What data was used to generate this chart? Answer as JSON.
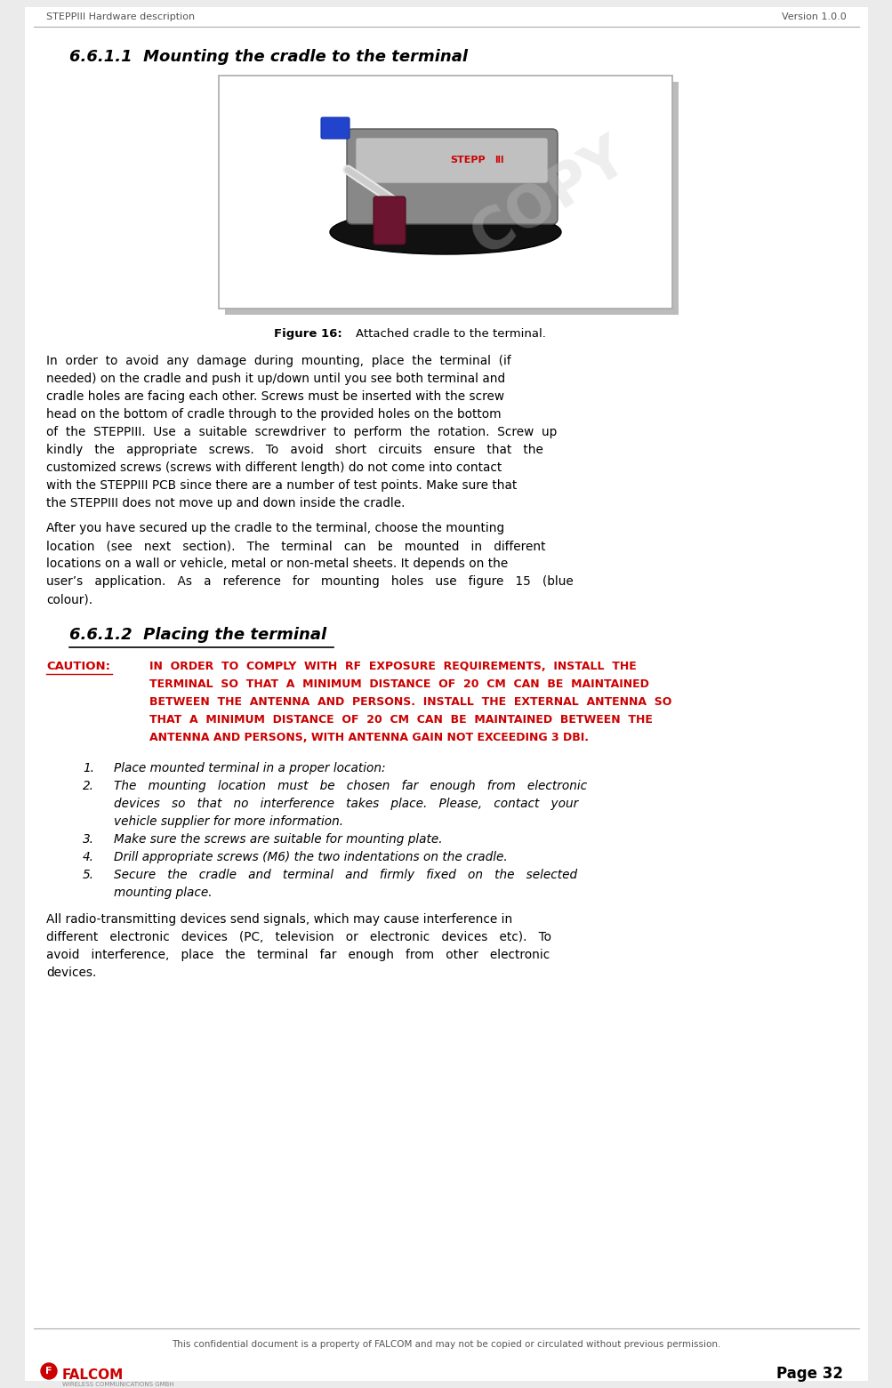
{
  "header_left": "STEPPIII Hardware description",
  "header_right": "Version 1.0.0",
  "section_title": "6.6.1.1  Mounting the cradle to the terminal",
  "figure_caption_bold": "Figure 16:",
  "figure_caption_text": "Attached cradle to the terminal.",
  "body_text_1_lines": [
    "In  order  to  avoid  any  damage  during  mounting,  place  the  terminal  (if",
    "needed) on the cradle and push it up/down until you see both terminal and",
    "cradle holes are facing each other. Screws must be inserted with the screw",
    "head on the bottom of cradle through to the provided holes on the bottom",
    "of  the  STEPPIII.  Use  a  suitable  screwdriver  to  perform  the  rotation.  Screw  up",
    "kindly   the   appropriate   screws.   To   avoid   short   circuits   ensure   that   the",
    "customized screws (screws with different length) do not come into contact",
    "with the STEPPIII PCB since there are a number of test points. Make sure that",
    "the STEPPIII does not move up and down inside the cradle."
  ],
  "body_text_2_lines": [
    "After you have secured up the cradle to the terminal, choose the mounting",
    "location   (see   next   section).   The   terminal   can   be   mounted   in   different",
    "locations on a wall or vehicle, metal or non-metal sheets. It depends on the",
    "user’s   application.   As   a   reference   for   mounting   holes   use   figure   15   (blue",
    "colour)."
  ],
  "section_title_2": "6.6.1.2  Placing the terminal",
  "caution_label": "CAUTION:",
  "caution_text_lines": [
    "IN  ORDER  TO  COMPLY  WITH  RF  EXPOSURE  REQUIREMENTS,  INSTALL  THE",
    "TERMINAL  SO  THAT  A  MINIMUM  DISTANCE  OF  20  CM  CAN  BE  MAINTAINED",
    "BETWEEN  THE  ANTENNA  AND  PERSONS.  INSTALL  THE  EXTERNAL  ANTENNA  SO",
    "THAT  A  MINIMUM  DISTANCE  OF  20  CM  CAN  BE  MAINTAINED  BETWEEN  THE",
    "ANTENNA AND PERSONS, WITH ANTENNA GAIN NOT EXCEEDING 3 DBI."
  ],
  "list_items": [
    [
      [
        "1.",
        "Place mounted terminal in a proper location:"
      ]
    ],
    [
      [
        "2.",
        "The   mounting   location   must   be   chosen   far   enough   from   electronic"
      ],
      [
        "",
        "devices   so   that   no   interference   takes   place.   Please,   contact   your"
      ],
      [
        "",
        "vehicle supplier for more information."
      ]
    ],
    [
      [
        "3.",
        "Make sure the screws are suitable for mounting plate."
      ]
    ],
    [
      [
        "4.",
        "Drill appropriate screws (M6) the two indentations on the cradle."
      ]
    ],
    [
      [
        "5.",
        "Secure   the   cradle   and   terminal   and   firmly   fixed   on   the   selected"
      ],
      [
        "",
        "mounting place."
      ]
    ]
  ],
  "body_text_3_lines": [
    "All radio-transmitting devices send signals, which may cause interference in",
    "different   electronic   devices   (PC,   television   or   electronic   devices   etc).   To",
    "avoid   interference,   place   the   terminal   far   enough   from   other   electronic",
    "devices."
  ],
  "footer_text": "This confidential document is a property of FALCOM and may not be copied or circulated without previous permission.",
  "footer_page": "Page 32",
  "bg_color": "#ebebeb",
  "page_color": "#ffffff",
  "text_color": "#000000",
  "caution_color": "#cc0000",
  "shadow_color": "#bbbbbb",
  "header_text_color": "#555555",
  "footer_text_color": "#555555",
  "line_color": "#aaaaaa"
}
